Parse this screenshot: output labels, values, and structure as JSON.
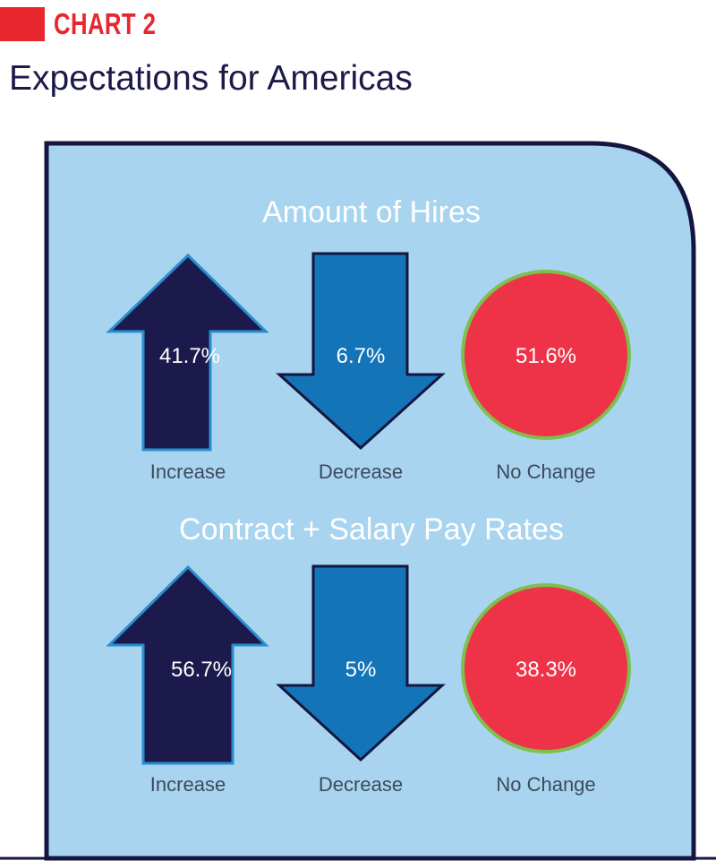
{
  "header": {
    "tag": "CHART 2",
    "title": "Expectations for Americas"
  },
  "colors": {
    "brand_red": "#e8262d",
    "title_navy": "#1b1a48",
    "panel_bg": "#a8d4f0",
    "panel_border": "#15163f",
    "increase": "#1c1a4c",
    "decrease": "#1374b7",
    "no_change": "#ee3349",
    "no_change_border": "#7fbf4d",
    "arrow_outline": "#2a8ed0"
  },
  "icons": {
    "increase": "up-arrow-icon",
    "decrease": "down-arrow-icon",
    "no_change": "circle-icon"
  },
  "chart_data": [
    {
      "type": "table",
      "title": "Amount of Hires",
      "categories": [
        "Increase",
        "Decrease",
        "No Change"
      ],
      "values": [
        41.7,
        6.7,
        51.6
      ],
      "value_labels": [
        "41.7%",
        "6.7%",
        "51.6%"
      ]
    },
    {
      "type": "table",
      "title": "Contract + Salary Pay Rates",
      "categories": [
        "Increase",
        "Decrease",
        "No Change"
      ],
      "values": [
        56.7,
        5,
        38.3
      ],
      "value_labels": [
        "56.7%",
        "5%",
        "38.3%"
      ]
    }
  ]
}
